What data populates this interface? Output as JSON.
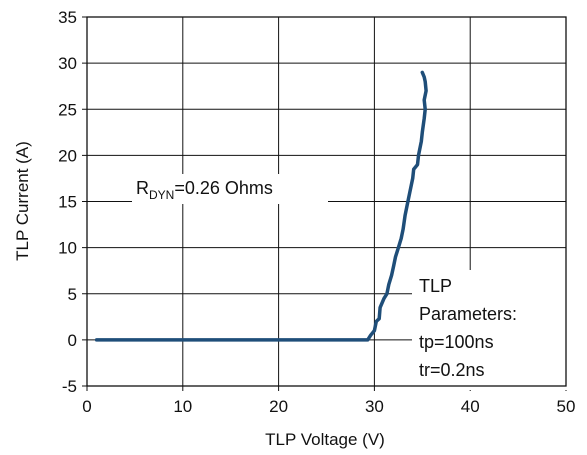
{
  "chart_data": {
    "type": "line",
    "title": "",
    "xlabel": "TLP Voltage (V)",
    "ylabel": "TLP Current (A)",
    "xlim": [
      0,
      50
    ],
    "ylim": [
      -5,
      35
    ],
    "xticks": [
      0,
      10,
      20,
      30,
      40,
      50
    ],
    "yticks": [
      -5,
      0,
      5,
      10,
      15,
      20,
      25,
      30,
      35
    ],
    "xtick_labels": [
      "0",
      "10",
      "20",
      "30",
      "40",
      "50"
    ],
    "ytick_labels": [
      "-5",
      "0",
      "5",
      "10",
      "15",
      "20",
      "25",
      "30",
      "35"
    ],
    "grid": true,
    "line_color": "#1f4e79",
    "series": [
      {
        "x": [
          1.0,
          10,
          20,
          29.3,
          29.6,
          30.0,
          30.2,
          30.5,
          30.6,
          31.0,
          31.3,
          31.5,
          31.8,
          32.0,
          32.2,
          32.5,
          32.8,
          33.0,
          33.2,
          33.5,
          33.7,
          34.0,
          34.1,
          34.5,
          34.6,
          34.9,
          35.0,
          35.2,
          35.3,
          35.2,
          35.4,
          35.3,
          35.2,
          35.0
        ],
        "y": [
          0,
          0,
          0,
          0,
          0.5,
          1.0,
          2.0,
          2.3,
          3.5,
          4.5,
          5.0,
          6.0,
          7.0,
          8.0,
          9.0,
          10.0,
          11.0,
          12.0,
          13.5,
          15.0,
          16.0,
          17.5,
          18.5,
          19.0,
          20.0,
          21.5,
          22.5,
          24.0,
          25.0,
          26.0,
          27.0,
          28.0,
          28.5,
          29.0
        ]
      }
    ],
    "annotations": [
      {
        "main": "R",
        "sub": "DYN",
        "rest": "=0.26  Ohms"
      },
      {
        "lines": [
          "TLP",
          "Parameters:",
          "tp=100ns",
          "tr=0.2ns"
        ]
      }
    ]
  }
}
